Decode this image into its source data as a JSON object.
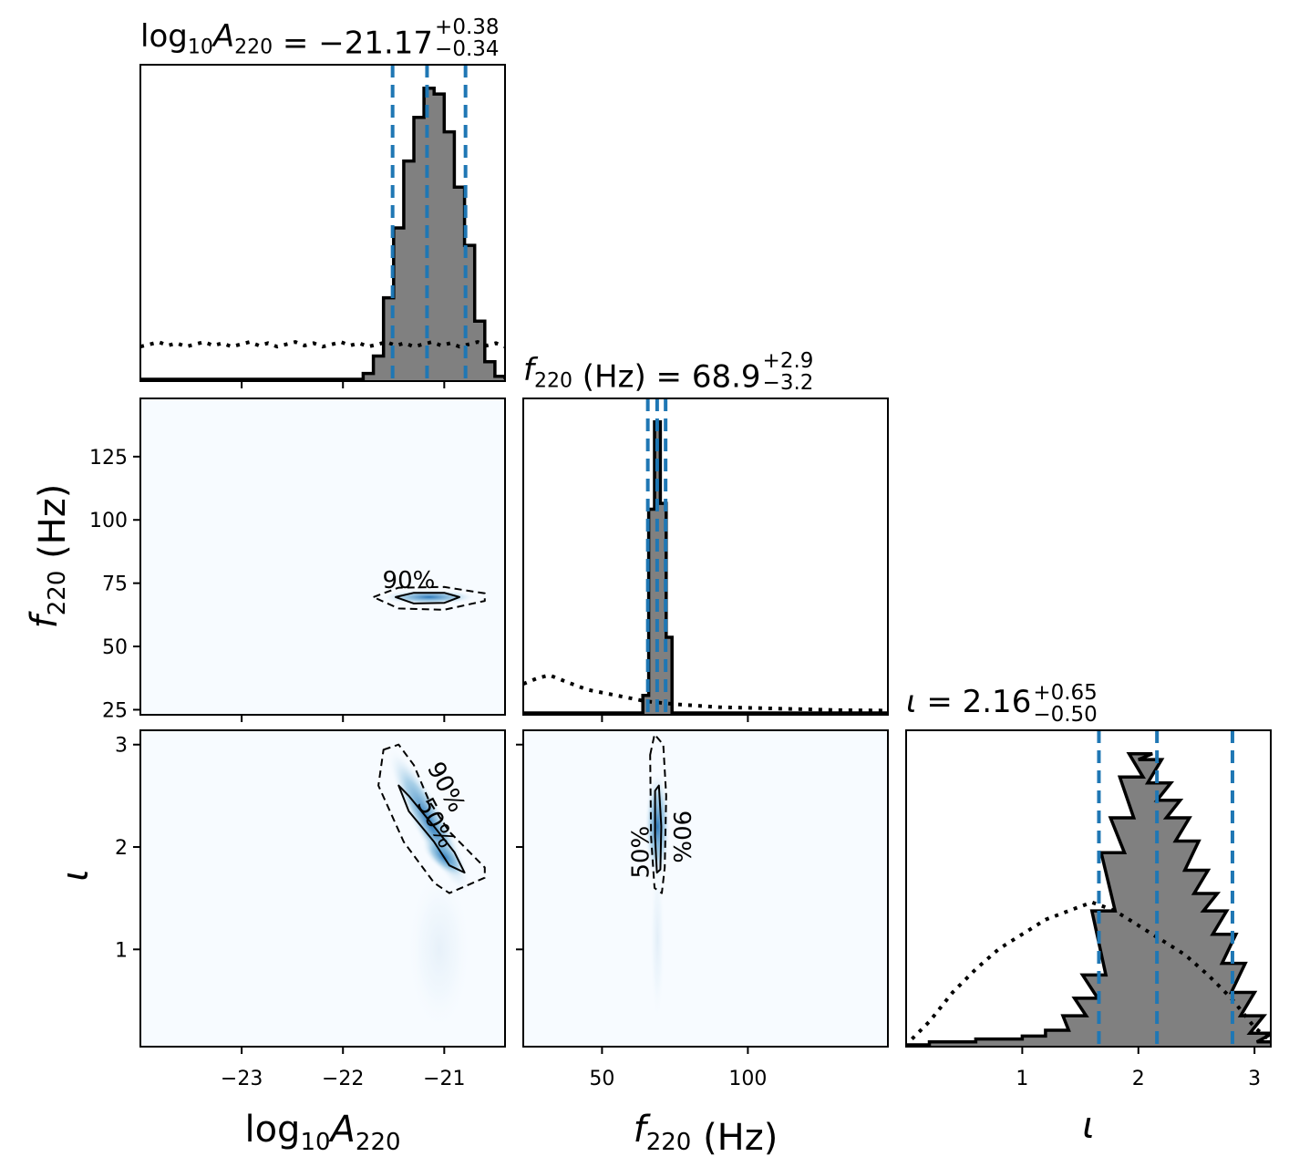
{
  "chart_data": [
    {
      "type": "histogram",
      "panel": "marginal",
      "parameter": "log10A220",
      "title": {
        "base": "log",
        "base_sub": "10",
        "symbol": "A",
        "symbol_sub": "220",
        "value": " = −21.17",
        "upper": "+0.38",
        "lower": "−0.34"
      },
      "median": -21.17,
      "interval": [
        -21.51,
        -20.79
      ],
      "xlim": [
        -24,
        -20.4
      ],
      "posterior_bins": [
        [
          -21.85,
          0.0
        ],
        [
          -21.75,
          0.02
        ],
        [
          -21.65,
          0.08
        ],
        [
          -21.55,
          0.28
        ],
        [
          -21.45,
          0.52
        ],
        [
          -21.35,
          0.75
        ],
        [
          -21.25,
          0.9
        ],
        [
          -21.15,
          1.0
        ],
        [
          -21.05,
          0.98
        ],
        [
          -20.95,
          0.85
        ],
        [
          -20.85,
          0.66
        ],
        [
          -20.75,
          0.46
        ],
        [
          -20.65,
          0.2
        ],
        [
          -20.55,
          0.06
        ],
        [
          -20.45,
          0.01
        ]
      ],
      "prior_level": 0.12
    },
    {
      "type": "histogram",
      "panel": "marginal",
      "parameter": "f220",
      "title": {
        "symbol": "f",
        "symbol_sub": "220",
        "value": " (Hz) = 68.9",
        "upper": "+2.9",
        "lower": "−3.2"
      },
      "median": 68.9,
      "interval": [
        65.7,
        71.8
      ],
      "xlim": [
        23,
        148
      ],
      "posterior_bins": [
        [
          63,
          0.0
        ],
        [
          65,
          0.06
        ],
        [
          67,
          0.7
        ],
        [
          69,
          1.0
        ],
        [
          71,
          0.72
        ],
        [
          73,
          0.26
        ],
        [
          75,
          0.0
        ]
      ],
      "prior": [
        [
          23,
          0.1
        ],
        [
          28,
          0.12
        ],
        [
          32,
          0.13
        ],
        [
          37,
          0.11
        ],
        [
          45,
          0.08
        ],
        [
          55,
          0.06
        ],
        [
          65,
          0.04
        ],
        [
          75,
          0.03
        ],
        [
          90,
          0.02
        ],
        [
          110,
          0.015
        ],
        [
          130,
          0.01
        ],
        [
          148,
          0.008
        ]
      ]
    },
    {
      "type": "histogram",
      "panel": "marginal",
      "parameter": "iota",
      "title": {
        "symbol": "ι",
        "value": " = 2.16",
        "upper": "+0.65",
        "lower": "−0.50"
      },
      "median": 2.16,
      "interval": [
        1.66,
        2.81
      ],
      "xlim": [
        0,
        3.14
      ],
      "posterior_bins": [
        [
          0.1,
          0.0
        ],
        [
          0.3,
          0.01
        ],
        [
          0.5,
          0.01
        ],
        [
          0.7,
          0.02
        ],
        [
          0.9,
          0.02
        ],
        [
          1.1,
          0.03
        ],
        [
          1.3,
          0.05
        ],
        [
          1.45,
          0.1
        ],
        [
          1.55,
          0.16
        ],
        [
          1.62,
          0.24
        ],
        [
          1.7,
          0.46
        ],
        [
          1.78,
          0.66
        ],
        [
          1.86,
          0.78
        ],
        [
          1.94,
          0.92
        ],
        [
          2.02,
          1.0
        ],
        [
          2.1,
          0.98
        ],
        [
          2.18,
          0.9
        ],
        [
          2.26,
          0.84
        ],
        [
          2.34,
          0.78
        ],
        [
          2.42,
          0.7
        ],
        [
          2.5,
          0.6
        ],
        [
          2.58,
          0.52
        ],
        [
          2.66,
          0.46
        ],
        [
          2.74,
          0.38
        ],
        [
          2.82,
          0.28
        ],
        [
          2.9,
          0.18
        ],
        [
          2.98,
          0.1
        ],
        [
          3.06,
          0.04
        ],
        [
          3.12,
          0.01
        ]
      ],
      "prior": [
        [
          0.05,
          0.02
        ],
        [
          0.2,
          0.08
        ],
        [
          0.4,
          0.18
        ],
        [
          0.6,
          0.26
        ],
        [
          0.8,
          0.33
        ],
        [
          1.0,
          0.38
        ],
        [
          1.2,
          0.43
        ],
        [
          1.4,
          0.46
        ],
        [
          1.6,
          0.49
        ],
        [
          1.8,
          0.46
        ],
        [
          2.0,
          0.41
        ],
        [
          2.2,
          0.36
        ],
        [
          2.4,
          0.31
        ],
        [
          2.6,
          0.24
        ],
        [
          2.8,
          0.16
        ],
        [
          3.0,
          0.06
        ],
        [
          3.12,
          0.02
        ]
      ]
    },
    {
      "type": "contour",
      "panel": "joint",
      "x_parameter": "log10A220",
      "y_parameter": "f220",
      "xlim": [
        -24,
        -20.4
      ],
      "ylim": [
        23,
        148
      ],
      "center": [
        -21.17,
        68.9
      ],
      "contours": [
        {
          "level": "50%",
          "label": "",
          "path": [
            [
              -21.48,
              69.5
            ],
            [
              -21.3,
              71.2
            ],
            [
              -21.0,
              71.2
            ],
            [
              -20.85,
              69.5
            ],
            [
              -21.0,
              67.2
            ],
            [
              -21.3,
              67.0
            ],
            [
              -21.48,
              69.5
            ]
          ]
        },
        {
          "level": "90%",
          "label": "90%",
          "path": [
            [
              -21.7,
              69.5
            ],
            [
              -21.45,
              73.2
            ],
            [
              -21.0,
              73.5
            ],
            [
              -20.6,
              71.0
            ],
            [
              -20.6,
              68.0
            ],
            [
              -21.0,
              64.5
            ],
            [
              -21.45,
              65.0
            ],
            [
              -21.7,
              69.5
            ]
          ]
        }
      ],
      "label_position": [
        -21.35,
        73
      ]
    },
    {
      "type": "contour",
      "panel": "joint",
      "x_parameter": "log10A220",
      "y_parameter": "iota",
      "xlim": [
        -24,
        -20.4
      ],
      "ylim": [
        0.05,
        3.14
      ],
      "center": [
        -21.1,
        2.15
      ],
      "contours": [
        {
          "level": "50%",
          "label": "50%",
          "path": [
            [
              -21.45,
              2.6
            ],
            [
              -21.35,
              2.35
            ],
            [
              -21.1,
              2.05
            ],
            [
              -20.95,
              1.82
            ],
            [
              -20.8,
              1.75
            ],
            [
              -20.9,
              1.95
            ],
            [
              -21.1,
              2.2
            ],
            [
              -21.35,
              2.5
            ],
            [
              -21.45,
              2.6
            ]
          ]
        },
        {
          "level": "90%",
          "label": "90%",
          "path": [
            [
              -21.6,
              2.95
            ],
            [
              -21.45,
              3.0
            ],
            [
              -21.3,
              2.8
            ],
            [
              -21.15,
              2.45
            ],
            [
              -20.95,
              2.15
            ],
            [
              -20.6,
              1.8
            ],
            [
              -20.6,
              1.7
            ],
            [
              -20.95,
              1.55
            ],
            [
              -21.1,
              1.65
            ],
            [
              -21.4,
              2.05
            ],
            [
              -21.65,
              2.6
            ],
            [
              -21.6,
              2.95
            ]
          ]
        }
      ],
      "label_positions": [
        [
          -21.05,
          2.55
        ],
        [
          -21.15,
          2.2
        ]
      ]
    },
    {
      "type": "contour",
      "panel": "joint",
      "x_parameter": "f220",
      "y_parameter": "iota",
      "xlim": [
        23,
        148
      ],
      "ylim": [
        0.05,
        3.14
      ],
      "center": [
        69,
        2.15
      ],
      "contours": [
        {
          "level": "50%",
          "label": "50%",
          "path": [
            [
              68.2,
              2.55
            ],
            [
              69.5,
              2.6
            ],
            [
              70.3,
              2.2
            ],
            [
              70.0,
              1.78
            ],
            [
              68.8,
              1.75
            ],
            [
              68.2,
              2.1
            ],
            [
              68.2,
              2.55
            ]
          ]
        },
        {
          "level": "90%",
          "label": "90%",
          "path": [
            [
              66.5,
              2.9
            ],
            [
              68.0,
              3.1
            ],
            [
              71.0,
              3.0
            ],
            [
              72.0,
              2.5
            ],
            [
              71.5,
              1.8
            ],
            [
              70.5,
              1.55
            ],
            [
              68.0,
              1.6
            ],
            [
              66.8,
              2.1
            ],
            [
              66.5,
              2.9
            ]
          ]
        }
      ],
      "label_positions": [
        [
          74.5,
          2.1
        ],
        [
          66.0,
          1.95
        ]
      ]
    }
  ],
  "axes": {
    "x_tick_labels": {
      "log10A220": [
        {
          "value": -23,
          "label": "−23"
        },
        {
          "value": -22,
          "label": "−22"
        },
        {
          "value": -21,
          "label": "−21"
        }
      ],
      "f220": [
        {
          "value": 50,
          "label": "50"
        },
        {
          "value": 100,
          "label": "100"
        }
      ],
      "iota": [
        {
          "value": 1,
          "label": "1"
        },
        {
          "value": 2,
          "label": "2"
        },
        {
          "value": 3,
          "label": "3"
        }
      ]
    },
    "y_tick_labels": {
      "f220": [
        {
          "value": 25,
          "label": "25"
        },
        {
          "value": 50,
          "label": "50"
        },
        {
          "value": 75,
          "label": "75"
        },
        {
          "value": 100,
          "label": "100"
        },
        {
          "value": 125,
          "label": "125"
        }
      ],
      "iota": [
        {
          "value": 1,
          "label": "1"
        },
        {
          "value": 2,
          "label": "2"
        },
        {
          "value": 3,
          "label": "3"
        }
      ]
    },
    "labels": {
      "x_log10A220": {
        "base": "log",
        "base_sub": "10",
        "symbol": "A",
        "symbol_sub": "220"
      },
      "x_f220": {
        "symbol": "f",
        "symbol_sub": "220",
        "unit": " (Hz)"
      },
      "x_iota": {
        "symbol": "ι"
      },
      "y_f220": {
        "symbol": "f",
        "symbol_sub": "220",
        "unit": " (Hz)"
      },
      "y_iota": {
        "symbol": "ι"
      }
    }
  },
  "colors": {
    "posterior_fill": "#808080",
    "posterior_edge": "#000000",
    "quantile_line": "#1f77b4",
    "density_low": "#f7fbff",
    "density_high": "#2171b5",
    "contour": "#000000"
  }
}
